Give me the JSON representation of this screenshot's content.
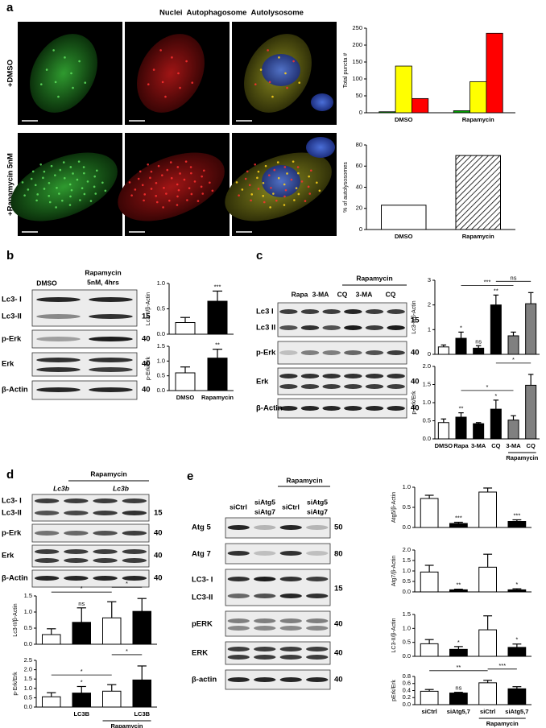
{
  "panel_labels": [
    "a",
    "b",
    "c",
    "d",
    "e"
  ],
  "panel_a": {
    "channels": [
      "Nuclei",
      "Autophagosome",
      "Autolysosome"
    ],
    "channel_colors": [
      "#2323ff",
      "#e8c600",
      "#ff1a1a"
    ],
    "rows": [
      "+DMSO",
      "+Rapamycin 5nM"
    ],
    "scale_bar": "10 μm"
  },
  "panel_b": {
    "lanes": [
      "DMSO",
      "Rapamycin",
      "5nM, 4hrs"
    ],
    "blots": [
      "Lc3- I",
      "Lc3-II",
      "p-Erk",
      "Erk",
      "β-Actin"
    ],
    "markers": [
      "15",
      "40",
      "40",
      "40"
    ]
  },
  "panel_c": {
    "group": "Rapamycin",
    "lanes": [
      "Rapa",
      "3-MA",
      "CQ",
      "3-MA",
      "CQ"
    ],
    "blots": [
      "Lc3 I",
      "Lc3 II",
      "p-Erk",
      "Erk",
      "β-Actin"
    ],
    "markers": [
      "15",
      "40",
      "40",
      "40"
    ]
  },
  "panel_d": {
    "group": "Rapamycin",
    "lanes": [
      "Lc3b",
      "Lc3b"
    ],
    "blots": [
      "Lc3- I",
      "Lc3-II",
      "p-Erk",
      "Erk",
      "β-Actin"
    ],
    "markers": [
      "15",
      "40",
      "40",
      "40"
    ]
  },
  "panel_e": {
    "group": "Rapamycin",
    "lanes": [
      "siCtrl",
      "siAtg5",
      "siAtg7",
      "siCtrl",
      "siAtg5",
      "siAtg7"
    ],
    "blots": [
      "Atg 5",
      "Atg 7",
      "LC3- I",
      "LC3-II",
      "pERK",
      "ERK",
      "β-actin"
    ],
    "markers": [
      "50",
      "80",
      "15",
      "40",
      "40",
      "40"
    ]
  },
  "chart_data": [
    {
      "type": "bar",
      "ylabel": "Total puncta #",
      "categories": [
        "DMSO",
        "Rapamycin"
      ],
      "series": [
        {
          "color": "#00a000",
          "values": [
            3,
            6
          ]
        },
        {
          "color": "#ffff00",
          "values": [
            138,
            92
          ]
        },
        {
          "color": "#ff0000",
          "values": [
            42,
            235
          ]
        }
      ],
      "ylim": [
        0,
        250
      ],
      "yticks": [
        0,
        50,
        100,
        150,
        200,
        250
      ]
    },
    {
      "type": "bar",
      "ylabel": "% of autolysosomes",
      "categories": [
        "DMSO",
        "Rapamycin"
      ],
      "values": [
        23,
        70
      ],
      "colors": [
        "#ffffff",
        "#ffffff"
      ],
      "hatch": [
        false,
        true
      ],
      "ylim": [
        0,
        80
      ],
      "yticks": [
        0,
        20,
        40,
        60,
        80
      ]
    },
    {
      "type": "bar",
      "ylabel": "Lc3-II/β-Actin",
      "categories": [
        null,
        null
      ],
      "values": [
        0.23,
        0.65
      ],
      "errors": [
        0.1,
        0.2
      ],
      "colors": [
        "#ffffff",
        "#000000"
      ],
      "bar_labels": [
        null,
        "***"
      ],
      "ylim": [
        0,
        1.0
      ],
      "yticks": [
        {
          "value": 0,
          "label": "0.0"
        },
        0.5,
        {
          "value": 1,
          "label": "1.0"
        }
      ]
    },
    {
      "type": "bar",
      "ylabel": "p-Erk/Erk",
      "categories": [
        "DMSO",
        "Rapamycin"
      ],
      "values": [
        0.6,
        1.1
      ],
      "errors": [
        0.2,
        0.3
      ],
      "colors": [
        "#ffffff",
        "#000000"
      ],
      "bar_labels": [
        null,
        "**"
      ],
      "ylim": [
        0,
        1.5
      ],
      "yticks": [
        {
          "value": 0,
          "label": "0.0"
        },
        0.5,
        {
          "value": 1,
          "label": "1.0"
        },
        1.5
      ]
    },
    {
      "type": "bar",
      "ylabel": "Lc3-II/β-Actin",
      "categories": [
        null,
        null,
        null,
        null,
        null,
        null
      ],
      "values": [
        0.3,
        0.65,
        0.25,
        2.0,
        0.75,
        2.05
      ],
      "errors": [
        0.08,
        0.25,
        0.1,
        0.4,
        0.15,
        0.45
      ],
      "colors": [
        "#ffffff",
        "#000000",
        "#000000",
        "#000000",
        "#808080",
        "#808080"
      ],
      "bar_labels": [
        null,
        "*",
        "ns",
        "**",
        null,
        null
      ],
      "comparison_labels": [
        "***",
        "ns"
      ],
      "ylim": [
        0,
        3
      ],
      "yticks": [
        0,
        1,
        2,
        3
      ]
    },
    {
      "type": "bar",
      "ylabel": "p-Erk/Erk",
      "categories": [
        "DMSO",
        "Rapa",
        "3-MA",
        "CQ",
        "3-MA",
        "CQ"
      ],
      "values": [
        0.45,
        0.6,
        0.42,
        0.82,
        0.52,
        1.48
      ],
      "errors": [
        0.1,
        0.12,
        0.03,
        0.25,
        0.12,
        0.3
      ],
      "colors": [
        "#ffffff",
        "#000000",
        "#000000",
        "#000000",
        "#808080",
        "#808080"
      ],
      "bar_labels": [
        null,
        "**",
        null,
        "*",
        null,
        null
      ],
      "comparison_labels": [
        "*",
        "*"
      ],
      "group_label": "Rapamycin",
      "ylim": [
        0,
        2.0
      ],
      "yticks": [
        {
          "value": 0,
          "label": "0.0"
        },
        0.5,
        {
          "value": 1,
          "label": "1.0"
        },
        1.5,
        {
          "value": 2,
          "label": "2.0"
        }
      ]
    },
    {
      "type": "bar",
      "ylabel": "Lc3-II/β-Actin",
      "categories": [
        null,
        null,
        null,
        null
      ],
      "values": [
        0.3,
        0.68,
        0.82,
        1.02
      ],
      "errors": [
        0.18,
        0.45,
        0.5,
        0.4
      ],
      "colors": [
        "#ffffff",
        "#000000",
        "#ffffff",
        "#000000"
      ],
      "bar_labels": [
        null,
        "ns",
        null,
        null
      ],
      "comparison_labels": [
        "*",
        "*"
      ],
      "ylim": [
        0,
        1.5
      ],
      "yticks": [
        {
          "value": 0,
          "label": "0.0"
        },
        0.5,
        {
          "value": 1,
          "label": "1.0"
        },
        1.5
      ]
    },
    {
      "type": "bar",
      "ylabel": "p-Erk/Erk",
      "categories": [
        null,
        "LC3B",
        null,
        "LC3B"
      ],
      "values": [
        0.55,
        0.75,
        0.85,
        1.45
      ],
      "errors": [
        0.22,
        0.35,
        0.35,
        0.75
      ],
      "colors": [
        "#ffffff",
        "#000000",
        "#ffffff",
        "#000000"
      ],
      "bar_labels": [
        null,
        "*",
        null,
        null
      ],
      "comparison_labels": [
        "*",
        "*"
      ],
      "group_label": "Rapamycin",
      "ylim": [
        0,
        2.5
      ],
      "yticks": [
        {
          "value": 0,
          "label": "0.0"
        },
        0.5,
        {
          "value": 1,
          "label": "1.0"
        },
        1.5,
        {
          "value": 2,
          "label": "2.0"
        },
        2.5
      ]
    },
    {
      "type": "bar",
      "ylabel": "Atg5/β-Actin",
      "categories": [
        null,
        null,
        null,
        null
      ],
      "values": [
        0.72,
        0.1,
        0.88,
        0.15
      ],
      "errors": [
        0.08,
        0.03,
        0.1,
        0.04
      ],
      "colors": [
        "#ffffff",
        "#000000",
        "#ffffff",
        "#000000"
      ],
      "bar_labels": [
        null,
        "***",
        null,
        "***"
      ],
      "ylim": [
        0,
        1.0
      ],
      "yticks": [
        {
          "value": 0,
          "label": "0.0"
        },
        0.5,
        {
          "value": 1,
          "label": "1.0"
        }
      ]
    },
    {
      "type": "bar",
      "ylabel": "Atg7/β-Actin",
      "categories": [
        null,
        null,
        null,
        null
      ],
      "values": [
        0.95,
        0.1,
        1.18,
        0.1
      ],
      "errors": [
        0.32,
        0.03,
        0.62,
        0.05
      ],
      "colors": [
        "#ffffff",
        "#000000",
        "#ffffff",
        "#000000"
      ],
      "bar_labels": [
        null,
        "**",
        null,
        "*"
      ],
      "ylim": [
        0,
        2.0
      ],
      "yticks": [
        {
          "value": 0,
          "label": "0.0"
        },
        0.5,
        {
          "value": 1,
          "label": "1.0"
        },
        1.5,
        {
          "value": 2,
          "label": "2.0"
        }
      ]
    },
    {
      "type": "bar",
      "ylabel": "LC3-II/β-Actin",
      "categories": [
        null,
        null,
        null,
        null
      ],
      "values": [
        0.45,
        0.25,
        0.95,
        0.32
      ],
      "errors": [
        0.15,
        0.1,
        0.5,
        0.12
      ],
      "colors": [
        "#ffffff",
        "#000000",
        "#ffffff",
        "#000000"
      ],
      "bar_labels": [
        null,
        "*",
        null,
        "*"
      ],
      "ylim": [
        0,
        1.5
      ],
      "yticks": [
        {
          "value": 0,
          "label": "0.0"
        },
        0.5,
        {
          "value": 1,
          "label": "1.0"
        },
        1.5
      ]
    },
    {
      "type": "bar",
      "ylabel": "pErk/Erk",
      "categories": [
        "siCtrl",
        "siAtg5,7",
        "siCtrl",
        "siAtg5,7"
      ],
      "values": [
        0.38,
        0.33,
        0.62,
        0.45
      ],
      "errors": [
        0.05,
        0.02,
        0.07,
        0.06
      ],
      "colors": [
        "#ffffff",
        "#000000",
        "#ffffff",
        "#000000"
      ],
      "bar_labels": [
        null,
        "ns",
        null,
        null
      ],
      "comparison_labels": [
        "**",
        "***"
      ],
      "group_label": "Rapamycin",
      "ylim": [
        0,
        0.8
      ],
      "yticks": [
        {
          "value": 0,
          "label": "0.0"
        },
        0.2,
        0.4,
        0.6,
        0.8
      ]
    }
  ]
}
